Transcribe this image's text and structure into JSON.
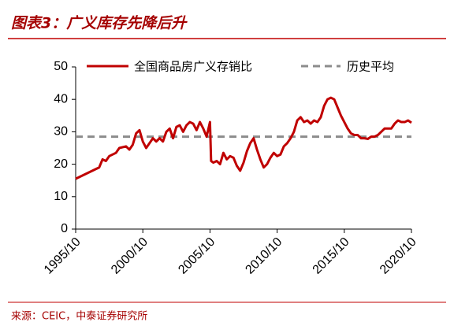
{
  "title": "图表3：广义库存先降后升",
  "source": "来源：CEIC，中泰证券研究所",
  "chart_data": {
    "type": "line",
    "x": [
      "1995/10",
      "1996/04",
      "1996/10",
      "1997/04",
      "1997/07",
      "1997/10",
      "1998/01",
      "1998/04",
      "1998/10",
      "1999/01",
      "1999/07",
      "1999/10",
      "2000/01",
      "2000/04",
      "2000/07",
      "2000/10",
      "2001/01",
      "2001/04",
      "2001/07",
      "2001/10",
      "2002/01",
      "2002/04",
      "2002/07",
      "2002/10",
      "2003/01",
      "2003/04",
      "2003/07",
      "2003/10",
      "2004/01",
      "2004/04",
      "2004/07",
      "2004/10",
      "2005/01",
      "2005/04",
      "2005/07",
      "2005/10",
      "2005/11",
      "2006/01",
      "2006/04",
      "2006/07",
      "2006/10",
      "2007/01",
      "2007/04",
      "2007/07",
      "2007/10",
      "2008/01",
      "2008/04",
      "2008/07",
      "2008/10",
      "2009/01",
      "2009/04",
      "2009/07",
      "2009/10",
      "2010/01",
      "2010/04",
      "2010/07",
      "2010/10",
      "2011/01",
      "2011/04",
      "2011/07",
      "2011/10",
      "2012/01",
      "2012/04",
      "2012/07",
      "2012/10",
      "2013/01",
      "2013/04",
      "2013/07",
      "2013/10",
      "2014/01",
      "2014/04",
      "2014/07",
      "2014/10",
      "2015/01",
      "2015/04",
      "2015/07",
      "2015/10",
      "2016/01",
      "2016/04",
      "2016/07",
      "2016/10",
      "2017/01",
      "2017/04",
      "2017/07",
      "2017/10",
      "2018/01",
      "2018/04",
      "2018/07",
      "2018/10",
      "2019/01",
      "2019/04",
      "2019/07",
      "2019/10",
      "2020/01",
      "2020/04",
      "2020/07",
      "2020/10"
    ],
    "series": [
      {
        "name": "全国商品房广义存销比",
        "color": "#c00000",
        "values": [
          15.5,
          16.5,
          17.5,
          18.5,
          19,
          21.5,
          21,
          22.5,
          23.5,
          25,
          25.5,
          24.5,
          26,
          29.5,
          30.5,
          27,
          25,
          26.5,
          28,
          27,
          28,
          27,
          30,
          31,
          28,
          31.5,
          32,
          30,
          32,
          33,
          32.5,
          30.5,
          33,
          31,
          28.5,
          33,
          21,
          20.5,
          21,
          20,
          23.5,
          21.5,
          22.5,
          22,
          19.5,
          18,
          20.5,
          24,
          26.5,
          28,
          24.5,
          21.5,
          19,
          20,
          22,
          23.5,
          22.5,
          23,
          25.5,
          26.5,
          28,
          30,
          33.5,
          34.5,
          33,
          33.5,
          32.5,
          33.5,
          33,
          34.5,
          38,
          40,
          40.5,
          40,
          37.5,
          35,
          33,
          31,
          29.5,
          29,
          29,
          28,
          28,
          27.8,
          28.5,
          28.5,
          29,
          30,
          31,
          31,
          31,
          32.5,
          33.5,
          33,
          33,
          33.5,
          32.8
        ]
      }
    ],
    "average": {
      "name": "历史平均",
      "value": 28.5,
      "color": "#8c8c8c"
    },
    "xlim": [
      "1995/10",
      "2020/10"
    ],
    "xticks": [
      "1995/10",
      "2000/10",
      "2005/10",
      "2010/10",
      "2015/10",
      "2020/10"
    ],
    "ylim": [
      0,
      50
    ],
    "yticks": [
      0,
      10,
      20,
      30,
      40,
      50
    ],
    "grid": false
  }
}
